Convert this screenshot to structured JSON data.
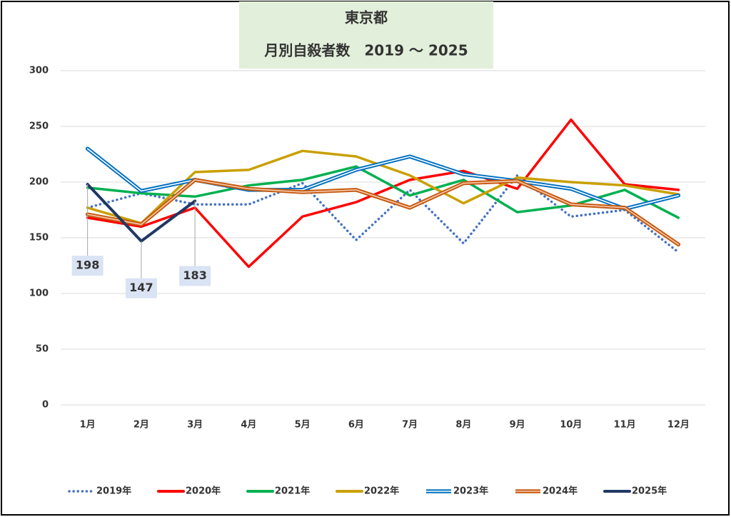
{
  "chart_data": {
    "type": "line",
    "title": "東京都",
    "subtitle": "月別自殺者数　2019 〜 2025",
    "categories": [
      "1月",
      "2月",
      "3月",
      "4月",
      "5月",
      "6月",
      "7月",
      "8月",
      "9月",
      "10月",
      "11月",
      "12月"
    ],
    "ylim": [
      0,
      300
    ],
    "yticks": [
      0,
      50,
      100,
      150,
      200,
      250,
      300
    ],
    "grid": true,
    "legend": "bottom",
    "series": [
      {
        "name": "2019年",
        "color": "#4472c4",
        "line_style": "dotted",
        "values": [
          177,
          190,
          180,
          180,
          199,
          148,
          193,
          145,
          206,
          169,
          175,
          137
        ]
      },
      {
        "name": "2020年",
        "color": "#ff0000",
        "line_style": "solid",
        "values": [
          168,
          160,
          177,
          124,
          169,
          182,
          202,
          210,
          194,
          256,
          198,
          193
        ]
      },
      {
        "name": "2021年",
        "color": "#00b050",
        "line_style": "solid",
        "values": [
          195,
          190,
          187,
          197,
          202,
          214,
          188,
          202,
          173,
          179,
          193,
          168
        ]
      },
      {
        "name": "2022年",
        "color": "#c9a000",
        "line_style": "solid",
        "values": [
          177,
          163,
          209,
          211,
          228,
          223,
          206,
          181,
          204,
          200,
          197,
          189
        ]
      },
      {
        "name": "2023年",
        "color": "#0070c0",
        "line_style": "double",
        "inner_color": "#ffffff",
        "values": [
          230,
          192,
          202,
          193,
          193,
          211,
          223,
          207,
          201,
          194,
          176,
          188
        ]
      },
      {
        "name": "2024年",
        "color": "#c55a11",
        "line_style": "double",
        "inner_color": "#f8cbad",
        "values": [
          171,
          162,
          202,
          194,
          191,
          193,
          177,
          199,
          201,
          180,
          177,
          144
        ]
      },
      {
        "name": "2025年",
        "color": "#203864",
        "line_style": "solid",
        "data_labels": true,
        "values": [
          198,
          147,
          183,
          null,
          null,
          null,
          null,
          null,
          null,
          null,
          null,
          null
        ]
      }
    ]
  }
}
